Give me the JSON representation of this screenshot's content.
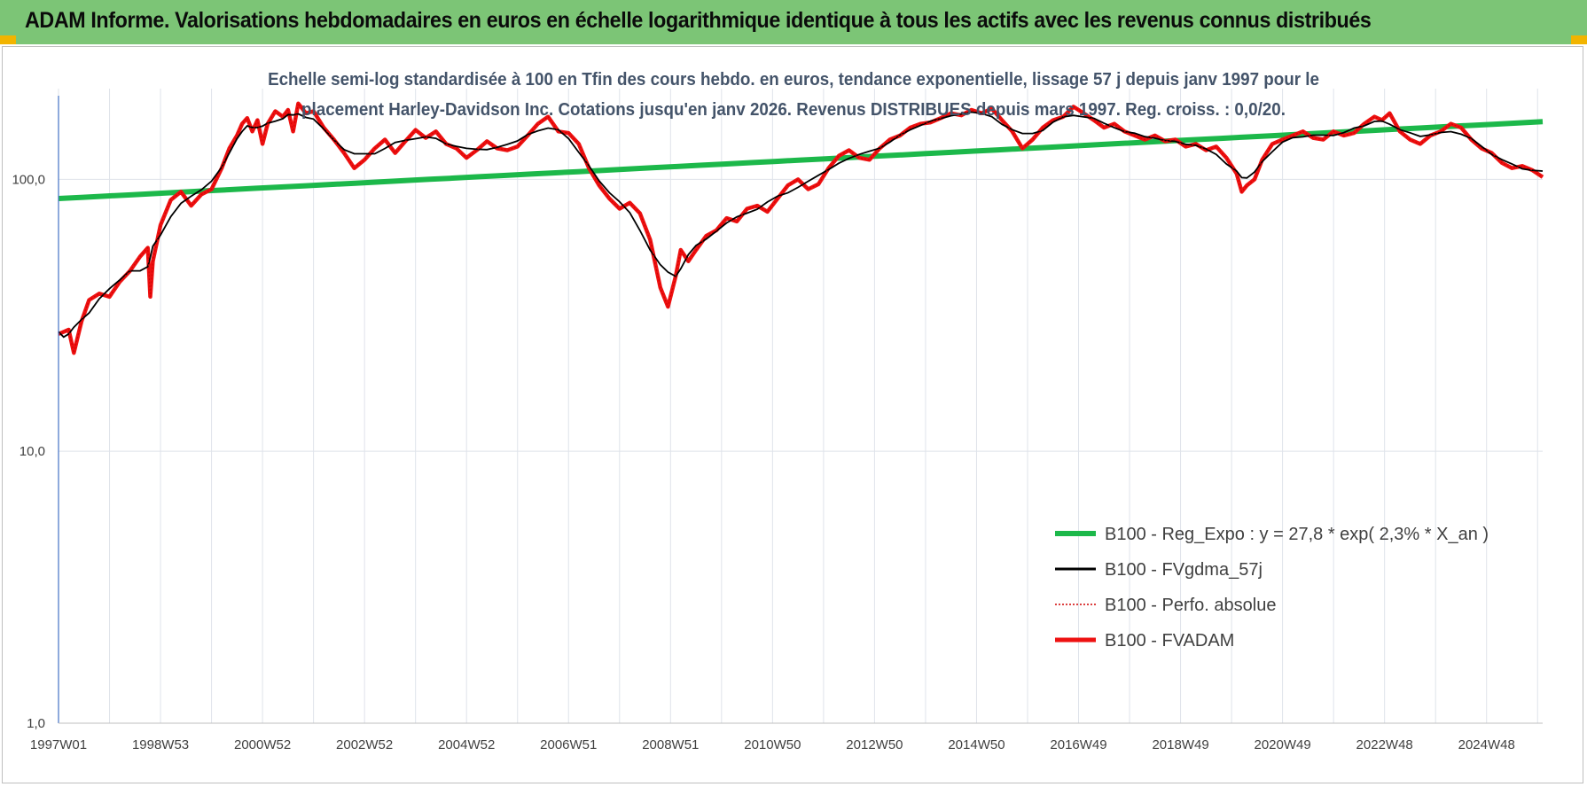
{
  "header": {
    "title": "ADAM Informe. Valorisations hebdomadaires en euros en échelle logarithmique identique à tous les actifs avec les revenus connus distribués"
  },
  "chart_data": {
    "type": "line",
    "subtitle_line1": "Echelle semi-log standardisée à 100 en Tfin des cours hebdo. en euros, tendance exponentielle, lissage 57 j depuis janv 1997 pour le",
    "subtitle_line2": "placement Harley-Davidson Inc. Cotations jusqu'en janv 2026. Revenus DISTRIBUES depuis mars 1997. Reg. croiss. : 0,0/20.",
    "y_scale": "log",
    "ylim": [
      1,
      200
    ],
    "y_ticks": [
      "1,0",
      "10,0",
      "100,0"
    ],
    "x_tick_labels": [
      "1997W01",
      "1998W53",
      "2000W52",
      "2002W52",
      "2004W52",
      "2006W51",
      "2008W51",
      "2010W50",
      "2012W50",
      "2014W50",
      "2016W49",
      "2018W49",
      "2020W49",
      "2022W48",
      "2024W48"
    ],
    "x_range_years": [
      1997.0,
      2026.1
    ],
    "grid": "vertical and horizontal",
    "legend_position": "right-center",
    "colors": {
      "reg_expo": "#1cb84a",
      "fvgdma": "#000000",
      "perfo": "#d00000",
      "fvadam": "#ee1111"
    },
    "series": [
      {
        "name": "B100 - Reg_Expo : y = 27,8 * exp( 2,3% *  X_an )",
        "style": "thick-solid",
        "type": "exponential",
        "start": 85,
        "end": 163
      },
      {
        "name": "B100 - FVgdma_57j",
        "style": "thin-solid"
      },
      {
        "name": "B100 - Perfo. absolue",
        "style": "dotted"
      },
      {
        "name": "B100 - FVADAM",
        "style": "thick-solid",
        "x": [
          1997.0,
          1997.1,
          1997.2,
          1997.3,
          1997.45,
          1997.6,
          1997.8,
          1998.0,
          1998.2,
          1998.4,
          1998.6,
          1998.75,
          1998.8,
          1998.85,
          1999.0,
          1999.2,
          1999.4,
          1999.6,
          1999.8,
          2000.0,
          2000.2,
          2000.35,
          2000.5,
          2000.6,
          2000.7,
          2000.8,
          2000.9,
          2001.0,
          2001.1,
          2001.25,
          2001.4,
          2001.5,
          2001.6,
          2001.7,
          2001.85,
          2002.0,
          2002.2,
          2002.4,
          2002.6,
          2002.8,
          2003.0,
          2003.2,
          2003.4,
          2003.6,
          2003.8,
          2004.0,
          2004.2,
          2004.4,
          2004.6,
          2004.8,
          2005.0,
          2005.2,
          2005.4,
          2005.6,
          2005.8,
          2006.0,
          2006.2,
          2006.4,
          2006.6,
          2006.8,
          2007.0,
          2007.2,
          2007.4,
          2007.6,
          2007.8,
          2008.0,
          2008.2,
          2008.4,
          2008.6,
          2008.8,
          2008.95,
          2009.1,
          2009.2,
          2009.35,
          2009.5,
          2009.7,
          2009.9,
          2010.1,
          2010.3,
          2010.5,
          2010.7,
          2010.9,
          2011.1,
          2011.3,
          2011.5,
          2011.7,
          2011.9,
          2012.1,
          2012.3,
          2012.5,
          2012.7,
          2012.9,
          2013.1,
          2013.3,
          2013.5,
          2013.7,
          2013.9,
          2014.1,
          2014.3,
          2014.5,
          2014.7,
          2014.9,
          2015.1,
          2015.3,
          2015.5,
          2015.7,
          2015.9,
          2016.1,
          2016.3,
          2016.5,
          2016.7,
          2016.9,
          2017.1,
          2017.3,
          2017.5,
          2017.7,
          2017.9,
          2018.1,
          2018.3,
          2018.5,
          2018.7,
          2018.9,
          2019.1,
          2019.3,
          2019.5,
          2019.7,
          2019.9,
          2020.1,
          2020.2,
          2020.3,
          2020.45,
          2020.6,
          2020.8,
          2021.0,
          2021.2,
          2021.4,
          2021.6,
          2021.8,
          2022.0,
          2022.2,
          2022.4,
          2022.6,
          2022.8,
          2022.95,
          2023.1,
          2023.3,
          2023.5,
          2023.7,
          2023.9,
          2024.1,
          2024.3,
          2024.5,
          2024.7,
          2024.9,
          2025.1,
          2025.3,
          2025.5,
          2025.7,
          2025.9,
          2026.1
        ],
        "y": [
          27,
          27.5,
          28,
          23,
          30,
          36,
          38,
          37,
          42,
          46,
          52,
          56,
          37,
          50,
          68,
          84,
          90,
          80,
          88,
          92,
          110,
          130,
          145,
          160,
          168,
          150,
          165,
          135,
          160,
          178,
          170,
          180,
          150,
          190,
          175,
          178,
          155,
          140,
          125,
          110,
          118,
          130,
          140,
          125,
          138,
          152,
          142,
          150,
          135,
          130,
          120,
          128,
          138,
          130,
          128,
          132,
          145,
          160,
          170,
          150,
          148,
          135,
          110,
          95,
          85,
          78,
          82,
          75,
          60,
          40,
          34,
          44,
          55,
          50,
          55,
          62,
          65,
          72,
          70,
          78,
          80,
          76,
          85,
          95,
          100,
          92,
          96,
          110,
          122,
          128,
          120,
          118,
          130,
          140,
          145,
          155,
          160,
          162,
          168,
          175,
          172,
          180,
          175,
          182,
          165,
          150,
          130,
          140,
          155,
          165,
          170,
          185,
          175,
          165,
          155,
          160,
          150,
          145,
          140,
          145,
          138,
          140,
          132,
          135,
          128,
          132,
          120,
          105,
          90,
          95,
          100,
          118,
          135,
          140,
          145,
          150,
          142,
          140,
          150,
          145,
          148,
          160,
          170,
          165,
          175,
          150,
          140,
          135,
          145,
          150,
          160,
          155,
          140,
          130,
          125,
          115,
          110,
          112,
          108,
          102
        ]
      }
    ]
  }
}
